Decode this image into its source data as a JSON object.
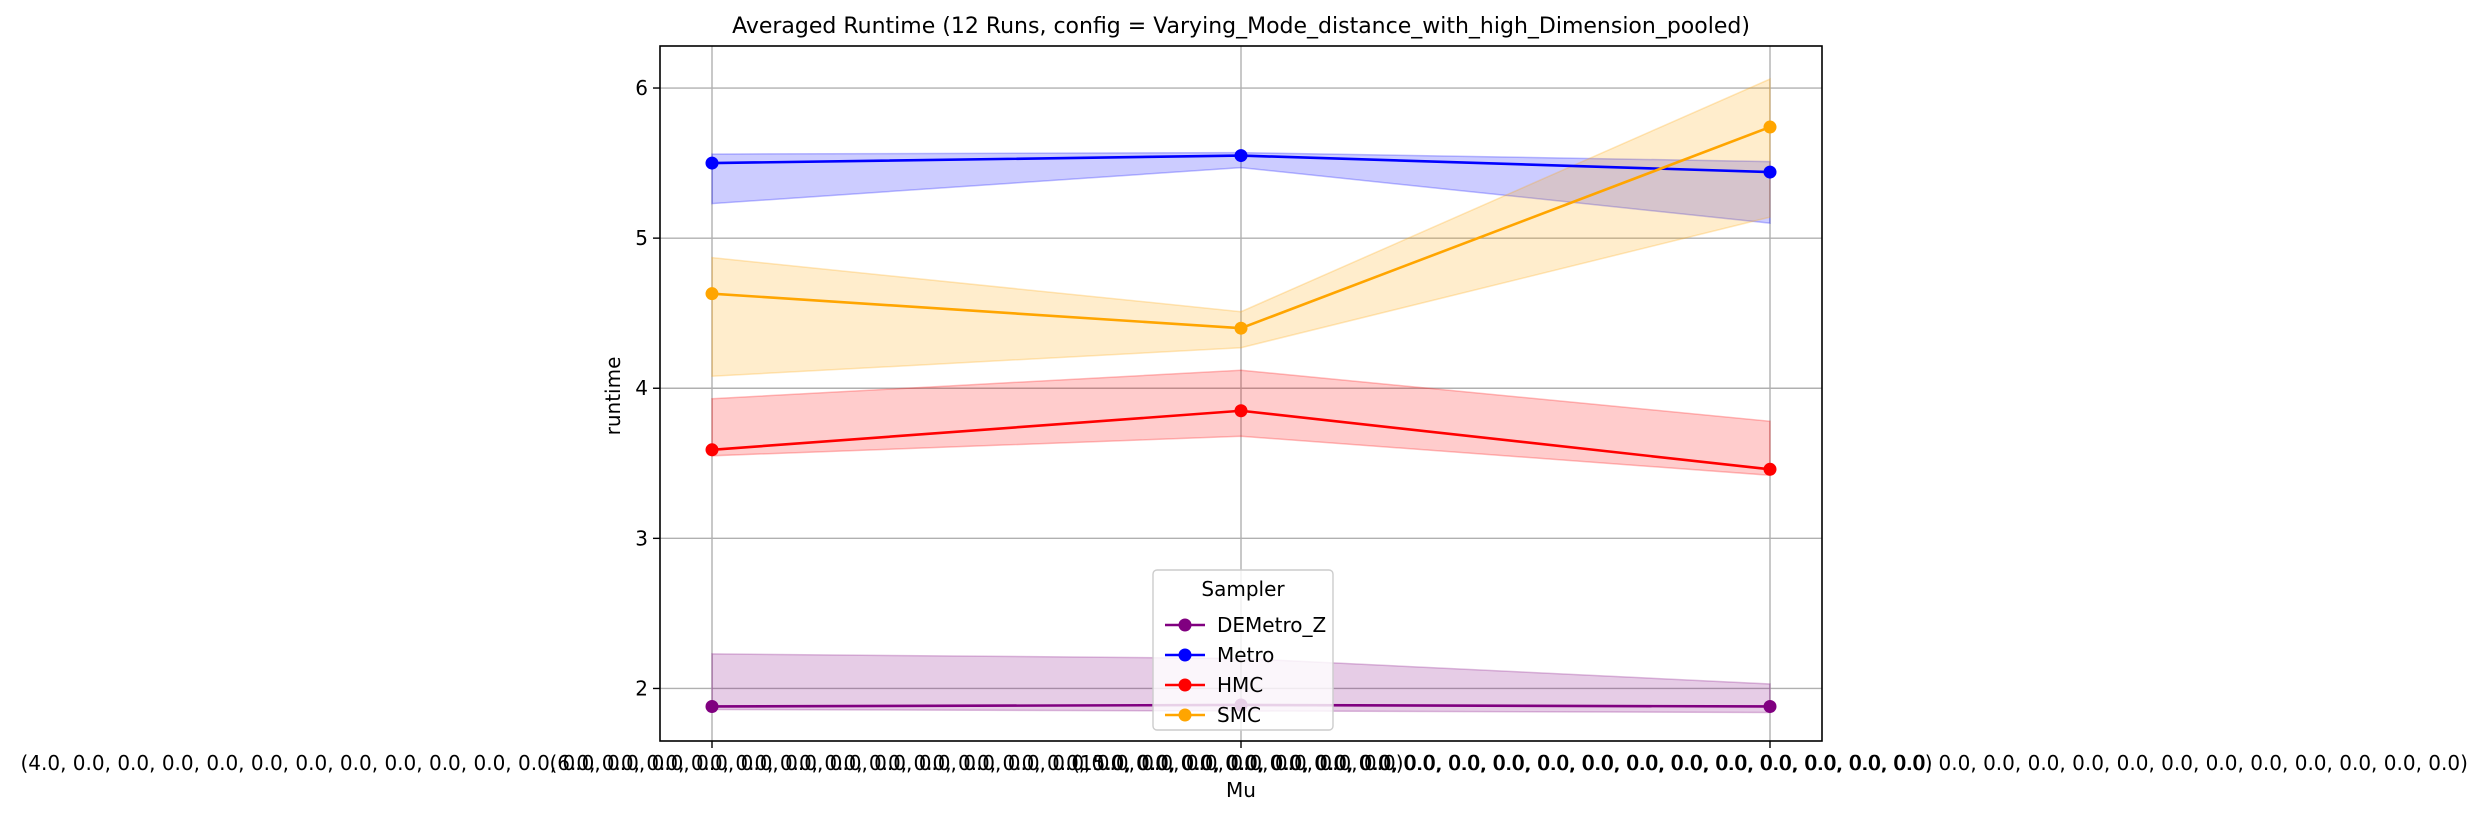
{
  "chart_data": {
    "type": "line",
    "title": "Averaged Runtime (12 Runs, config = Varying_Mode_distance_with_high_Dimension_pooled)",
    "xlabel": "Mu",
    "ylabel": "runtime",
    "categories": [
      "(4.0, 0.0, 0.0, 0.0, 0.0, 0.0, 0.0, 0.0, 0.0, 0.0, 0.0, 0.0, 0.0, 0.0, 0.0, 0.0, 0.0, 0.0, 0.0, 0.0, 0.0, 0.0, 0.0, 0.0, 0.0, 0.0, 0.0, 0.0, 0.0, 0.0, 0.0)",
      "(6.0, 0.0, 0.0, 0.0, 0.0, 0.0, 0.0, 0.0, 0.0, 0.0, 0.0, 0.0, 0.0, 0.0, 0.0, 0.0, 0.0, 0.0, 0.0, 0.0, 0.0, 0.0, 0.0, 0.0, 0.0, 0.0, 0.0, 0.0, 0.0, 0.0, 0.0)",
      "(15.0, 0.0, 0.0, 0.0, 0.0, 0.0, 0.0, 0.0, 0.0, 0.0, 0.0, 0.0, 0.0, 0.0, 0.0, 0.0, 0.0, 0.0, 0.0, 0.0, 0.0, 0.0, 0.0, 0.0, 0.0, 0.0, 0.0, 0.0, 0.0, 0.0, 0.0)"
    ],
    "ylim": [
      1.65,
      6.28
    ],
    "yticks": [
      "2",
      "3",
      "4",
      "5",
      "6"
    ],
    "grid": true,
    "legend": {
      "title": "Sampler",
      "placement": "lower-center"
    },
    "series": [
      {
        "name": "DEMetro_Z",
        "color": "#800080",
        "values": [
          1.88,
          1.89,
          1.88
        ],
        "lower": [
          1.86,
          1.85,
          1.84
        ],
        "upper": [
          2.23,
          2.2,
          2.03
        ]
      },
      {
        "name": "Metro",
        "color": "#0000ff",
        "values": [
          5.5,
          5.55,
          5.44
        ],
        "lower": [
          5.23,
          5.47,
          5.1
        ],
        "upper": [
          5.56,
          5.57,
          5.51
        ]
      },
      {
        "name": "HMC",
        "color": "#ff0000",
        "values": [
          3.59,
          3.85,
          3.46
        ],
        "lower": [
          3.55,
          3.68,
          3.42
        ],
        "upper": [
          3.93,
          4.12,
          3.78
        ]
      },
      {
        "name": "SMC",
        "color": "#ffa500",
        "values": [
          4.63,
          4.4,
          5.74
        ],
        "lower": [
          4.08,
          4.27,
          5.14
        ],
        "upper": [
          4.87,
          4.51,
          6.06
        ]
      }
    ]
  }
}
